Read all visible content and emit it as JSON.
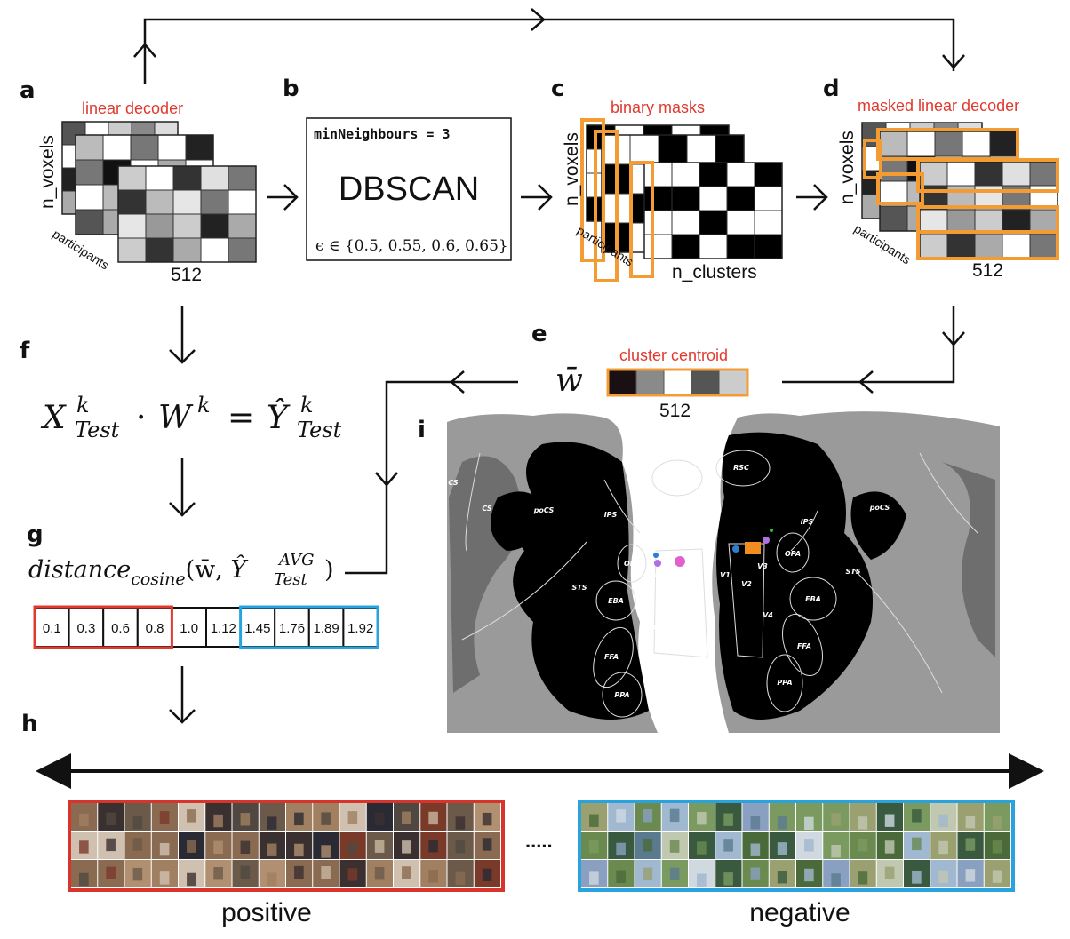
{
  "colors": {
    "accent_red": "#e03a2f",
    "mask_orange": "#f39c34",
    "negative_blue": "#29a3dd",
    "positive_red": "#d9342b"
  },
  "panels": {
    "a": {
      "letter": "a",
      "title": "linear decoder",
      "y_axis": "n_voxels",
      "depth_axis": "participants",
      "x_axis": "512",
      "front_matrix": [
        [
          "#cccccc",
          "#ffffff",
          "#333333",
          "#e0e0e0",
          "#777777"
        ],
        [
          "#333333",
          "#bbbbbb",
          "#e6e6e6",
          "#777777",
          "#ffffff"
        ],
        [
          "#e6e6e6",
          "#999999",
          "#cccccc",
          "#222222",
          "#aaaaaa"
        ],
        [
          "#cccccc",
          "#333333",
          "#aaaaaa",
          "#ffffff",
          "#777777"
        ]
      ],
      "mid_matrix": [
        [
          "#bbbbbb",
          "#ffffff",
          "#777777",
          "#ffffff",
          "#222222"
        ],
        [
          "#777777",
          "#111111",
          "#ffffff",
          "#aaaaaa",
          "#ffffff"
        ],
        [
          "#ffffff",
          "#bbbbbb",
          "#888888",
          "#cccccc",
          "#555555"
        ],
        [
          "#555555",
          "#aaaaaa",
          "#cccccc",
          "#444444",
          "#999999"
        ]
      ],
      "back_matrix": [
        [
          "#555555",
          "#ffffff",
          "#cccccc",
          "#888888",
          "#dddddd"
        ],
        [
          "#ffffff",
          "#999999",
          "#444444",
          "#bbbbbb",
          "#666666"
        ],
        [
          "#222222",
          "#cccccc",
          "#ffffff",
          "#777777",
          "#aaaaaa"
        ],
        [
          "#aaaaaa",
          "#555555",
          "#dddddd",
          "#333333",
          "#eeeeee"
        ]
      ]
    },
    "b": {
      "letter": "b",
      "param": "minNeighbours = 3",
      "method": "DBSCAN",
      "epsilon": "ϵ ∈ {0.5, 0.55, 0.6, 0.65}"
    },
    "c": {
      "letter": "c",
      "title": "binary masks",
      "y_axis": "n_voxels",
      "depth_axis": "participants",
      "x_axis": "n_clusters",
      "front_matrix": [
        [
          0,
          0,
          1,
          0,
          1
        ],
        [
          1,
          1,
          0,
          1,
          0
        ],
        [
          0,
          0,
          1,
          0,
          0
        ],
        [
          0,
          1,
          0,
          1,
          1
        ]
      ],
      "mid_matrix": [
        [
          0,
          0,
          1,
          0,
          1
        ],
        [
          1,
          0,
          0,
          1,
          0
        ],
        [
          0,
          1,
          1,
          0,
          1
        ],
        [
          1,
          0,
          0,
          1,
          0
        ]
      ],
      "back_matrix": [
        [
          1,
          0,
          1,
          0,
          1
        ],
        [
          0,
          1,
          0,
          1,
          0
        ],
        [
          0,
          0,
          1,
          0,
          1
        ],
        [
          1,
          0,
          0,
          1,
          0
        ]
      ]
    },
    "d": {
      "letter": "d",
      "title": "masked linear decoder",
      "y_axis": "n_voxels",
      "depth_axis": "participants",
      "x_axis": "512"
    },
    "e": {
      "letter": "e",
      "symbol": "w̄",
      "title": "cluster centroid",
      "size": "512",
      "centroid_colors": [
        "#1a0f12",
        "#8a8a8a",
        "#ffffff",
        "#555555",
        "#cccccc"
      ]
    },
    "f": {
      "letter": "f",
      "X": "X",
      "W": "W",
      "Y": "Ŷ",
      "sup": "k",
      "sub": "Test",
      "dot": "·",
      "eq": "="
    },
    "g": {
      "letter": "g",
      "fn": "distance",
      "fn_sub": "cosine",
      "args_open": "(w̄, ",
      "Y": "Ŷ",
      "sup": "AVG",
      "sub": "Test",
      "args_close": ")",
      "distances": [
        "0.1",
        "0.3",
        "0.6",
        "0.8",
        "1.0",
        "1.12",
        "1.45",
        "1.76",
        "1.89",
        "1.92"
      ]
    },
    "h": {
      "letter": "h",
      "positive": "positive",
      "negative": "negative",
      "ellipsis": "....."
    },
    "i": {
      "letter": "i",
      "regions": [
        "RSC",
        "CS",
        "poCS",
        "IPS",
        "OPA",
        "STS",
        "EBA",
        "V1",
        "V2",
        "V3",
        "V4",
        "FFA",
        "PPA"
      ]
    }
  }
}
